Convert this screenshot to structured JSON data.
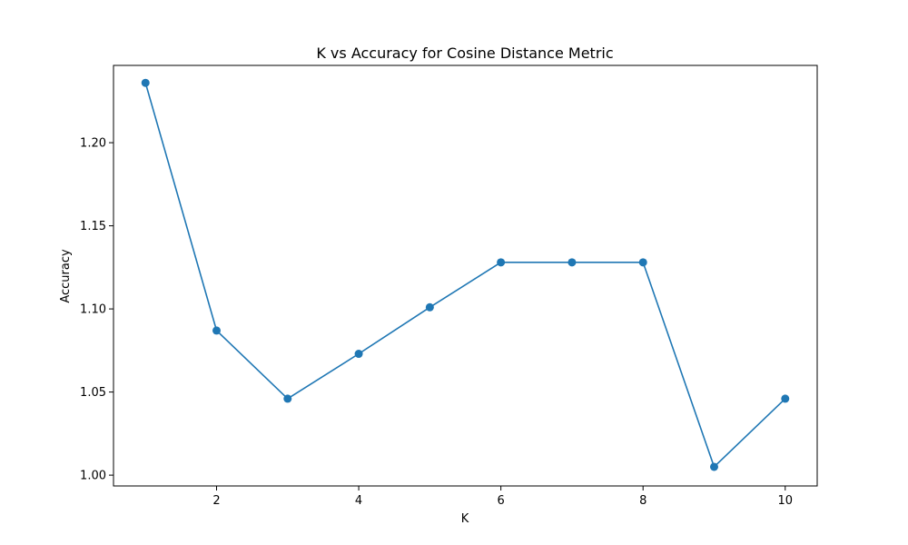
{
  "chart_data": {
    "type": "line",
    "title": "K vs Accuracy for Cosine Distance Metric",
    "xlabel": "K",
    "ylabel": "Accuracy",
    "xlim": [
      0.55,
      10.45
    ],
    "ylim": [
      0.9935,
      1.2465
    ],
    "x_ticks": [
      2,
      4,
      6,
      8,
      10
    ],
    "x_tick_labels": [
      "2",
      "4",
      "6",
      "8",
      "10"
    ],
    "y_ticks": [
      1.0,
      1.05,
      1.1,
      1.15,
      1.2
    ],
    "y_tick_labels": [
      "1.00",
      "1.05",
      "1.10",
      "1.15",
      "1.20"
    ],
    "grid": false,
    "series": [
      {
        "color": "#1f77b4",
        "marker": "circle",
        "x": [
          1,
          2,
          3,
          4,
          5,
          6,
          7,
          8,
          9,
          10
        ],
        "y": [
          1.236,
          1.087,
          1.046,
          1.073,
          1.101,
          1.128,
          1.128,
          1.128,
          1.005,
          1.046
        ]
      }
    ]
  }
}
